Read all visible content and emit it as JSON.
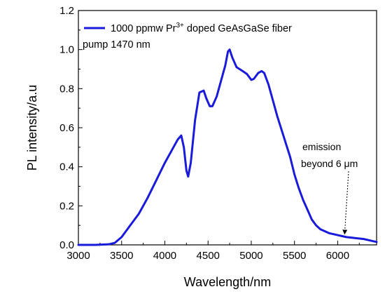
{
  "chart_data": {
    "type": "line",
    "xlabel": "Wavelength/nm",
    "ylabel": "PL intensity/a.u",
    "xlim": [
      3000,
      6450
    ],
    "ylim": [
      0.0,
      1.2
    ],
    "xticks": [
      "3000",
      "3500",
      "4000",
      "4500",
      "5000",
      "5500",
      "6000"
    ],
    "yticks": [
      "0.0",
      "0.2",
      "0.4",
      "0.6",
      "0.8",
      "1.0",
      "1.2"
    ],
    "grid": false,
    "legend_position": "top-left",
    "legend": {
      "pre": "1000 ppmw Pr",
      "sup": "3+",
      "post": " doped GeAsGaSe fiber",
      "line_color": "#1a1adb"
    },
    "subtitle": "pump 1470 nm",
    "annotation": {
      "line1": "emission",
      "line2": "beyond 6 μm",
      "arrow_target": [
        6080,
        0.055
      ]
    },
    "series": [
      {
        "color": "#1a1adb",
        "x": [
          3000,
          3200,
          3350,
          3420,
          3500,
          3600,
          3700,
          3800,
          3900,
          4000,
          4100,
          4150,
          4190,
          4220,
          4250,
          4270,
          4300,
          4350,
          4400,
          4450,
          4480,
          4520,
          4550,
          4600,
          4650,
          4700,
          4730,
          4750,
          4780,
          4830,
          4900,
          4950,
          5000,
          5030,
          5080,
          5120,
          5150,
          5200,
          5250,
          5300,
          5350,
          5400,
          5450,
          5500,
          5550,
          5600,
          5650,
          5700,
          5750,
          5800,
          5850,
          5900,
          5950,
          6000,
          6050,
          6100,
          6200,
          6300,
          6400,
          6450
        ],
        "y": [
          0.0,
          0.0,
          0.003,
          0.01,
          0.04,
          0.1,
          0.16,
          0.24,
          0.33,
          0.42,
          0.5,
          0.54,
          0.56,
          0.5,
          0.38,
          0.35,
          0.42,
          0.64,
          0.78,
          0.79,
          0.75,
          0.71,
          0.71,
          0.76,
          0.84,
          0.92,
          0.99,
          1.0,
          0.96,
          0.91,
          0.89,
          0.875,
          0.845,
          0.85,
          0.88,
          0.89,
          0.88,
          0.82,
          0.74,
          0.66,
          0.59,
          0.52,
          0.45,
          0.36,
          0.29,
          0.23,
          0.18,
          0.13,
          0.1,
          0.08,
          0.07,
          0.06,
          0.055,
          0.05,
          0.045,
          0.04,
          0.035,
          0.03,
          0.02,
          0.015
        ]
      }
    ]
  }
}
